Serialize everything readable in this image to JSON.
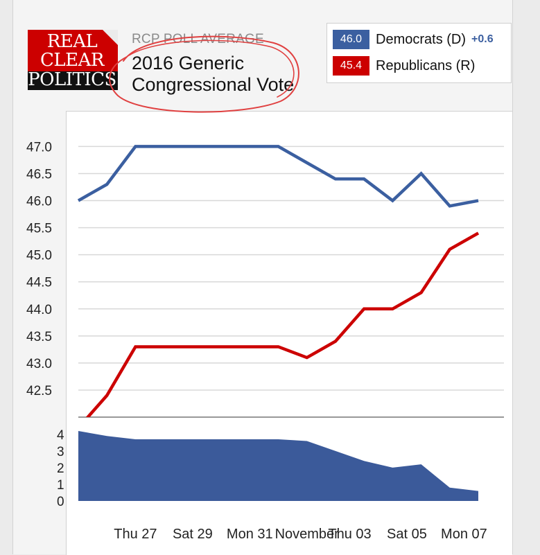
{
  "header": {
    "logo_lines": [
      "REAL",
      "CLEAR",
      "POLITICS"
    ],
    "subtitle": "RCP POLL AVERAGE",
    "title_lines": [
      "2016 Generic",
      "Congressional Vote"
    ]
  },
  "legend": [
    {
      "value": "46.0",
      "name": "Democrats (D)",
      "change": "+0.6",
      "color": "#3b5fa0"
    },
    {
      "value": "45.4",
      "name": "Republicans (R)",
      "change": "",
      "color": "#cc0000"
    }
  ],
  "annotation": {
    "type": "hand-drawn ellipse",
    "color": "#e04040",
    "encircles": "title"
  },
  "chart_data": {
    "type": "line",
    "x": [
      0,
      1,
      2,
      3,
      4,
      5,
      6,
      7,
      8,
      9,
      10,
      11,
      12,
      13,
      14
    ],
    "x_tick_labels": [
      {
        "x": 2,
        "label": "Thu 27"
      },
      {
        "x": 4,
        "label": "Sat 29"
      },
      {
        "x": 6,
        "label": "Mon 31"
      },
      {
        "x": 8,
        "label": "November"
      },
      {
        "x": 9.5,
        "label": "Thu 03"
      },
      {
        "x": 11.5,
        "label": "Sat 05"
      },
      {
        "x": 13.5,
        "label": "Mon 07"
      }
    ],
    "series": [
      {
        "name": "Democrats (D)",
        "color": "#3b5fa0",
        "values": [
          46.0,
          46.3,
          47.0,
          47.0,
          47.0,
          47.0,
          47.0,
          47.0,
          46.7,
          46.4,
          46.4,
          46.0,
          46.5,
          45.9,
          46.0
        ]
      },
      {
        "name": "Republicans (R)",
        "color": "#cc0000",
        "values": [
          41.8,
          42.4,
          43.3,
          43.3,
          43.3,
          43.3,
          43.3,
          43.3,
          43.1,
          43.4,
          44.0,
          44.0,
          44.3,
          45.1,
          45.4
        ]
      }
    ],
    "ylim": [
      42.0,
      47.3
    ],
    "yticks": [
      "47.0",
      "46.5",
      "46.0",
      "45.5",
      "45.0",
      "44.5",
      "44.0",
      "43.5",
      "43.0",
      "42.5"
    ],
    "ytick_values": [
      47.0,
      46.5,
      46.0,
      45.5,
      45.0,
      44.5,
      44.0,
      43.5,
      43.0,
      42.5
    ],
    "spread": {
      "type": "area",
      "color": "#3b5a9a",
      "values": [
        4.2,
        3.9,
        3.7,
        3.7,
        3.7,
        3.7,
        3.7,
        3.7,
        3.6,
        3.0,
        2.4,
        2.0,
        2.2,
        0.8,
        0.6
      ],
      "ylim": [
        0,
        4.7
      ],
      "yticks": [
        "4",
        "3",
        "2",
        "1",
        "0"
      ],
      "ytick_values": [
        4,
        3,
        2,
        1,
        0
      ]
    },
    "grid": true
  }
}
